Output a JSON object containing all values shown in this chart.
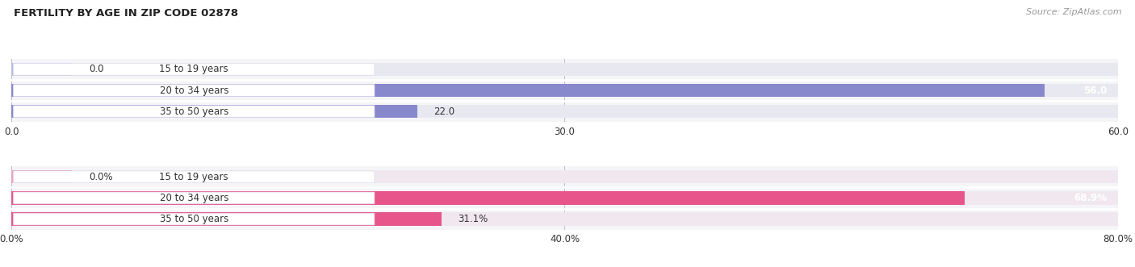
{
  "title": "FERTILITY BY AGE IN ZIP CODE 02878",
  "source": "Source: ZipAtlas.com",
  "top_chart": {
    "categories": [
      "15 to 19 years",
      "20 to 34 years",
      "35 to 50 years"
    ],
    "values": [
      0.0,
      56.0,
      22.0
    ],
    "xlim": [
      0,
      60
    ],
    "xticks": [
      0.0,
      30.0,
      60.0
    ],
    "xtick_labels": [
      "0.0",
      "30.0",
      "60.0"
    ],
    "bar_color": "#8888cc",
    "bar_color_light": "#bbbbdd",
    "bar_bg_color": "#e8e8f0",
    "value_labels": [
      "0.0",
      "56.0",
      "22.0"
    ],
    "value_inside": [
      false,
      true,
      false
    ]
  },
  "bottom_chart": {
    "categories": [
      "15 to 19 years",
      "20 to 34 years",
      "35 to 50 years"
    ],
    "values": [
      0.0,
      68.9,
      31.1
    ],
    "xlim": [
      0,
      80
    ],
    "xticks": [
      0.0,
      40.0,
      80.0
    ],
    "xtick_labels": [
      "0.0%",
      "40.0%",
      "80.0%"
    ],
    "bar_color": "#e8558a",
    "bar_color_light": "#f0a0be",
    "bar_bg_color": "#f0e8ee",
    "value_labels": [
      "0.0%",
      "68.9%",
      "31.1%"
    ],
    "value_inside": [
      false,
      true,
      false
    ]
  },
  "bg_color": "#f5f5f8",
  "label_color": "#333333",
  "title_color": "#222222",
  "source_color": "#999999",
  "pill_bg": "#ffffff",
  "pill_border": "#ddddee"
}
